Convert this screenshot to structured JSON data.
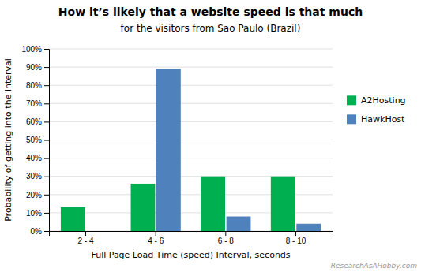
{
  "chart_data": {
    "type": "bar",
    "title": "How it’s likely that a website speed is that much",
    "subtitle": "for the visitors from Sao Paulo (Brazil)",
    "categories": [
      "2 - 4",
      "4 - 6",
      "6 - 8",
      "8 - 10"
    ],
    "series": [
      {
        "name": "A2Hosting",
        "color": "#00b050",
        "values": [
          0.13,
          0.26,
          0.3,
          0.3
        ]
      },
      {
        "name": "HawkHost",
        "color": "#4f81bd",
        "values": [
          0.0,
          0.89,
          0.08,
          0.04
        ]
      }
    ],
    "xlabel": "Full Page Load Time (speed) Interval, seconds",
    "ylabel": "Probability of getting into the interval",
    "ylim": [
      0,
      1.0
    ],
    "yticks": [
      {
        "value": 0.0,
        "label": "0%"
      },
      {
        "value": 0.1,
        "label": "10%"
      },
      {
        "value": 0.2,
        "label": "20%"
      },
      {
        "value": 0.3,
        "label": "30%"
      },
      {
        "value": 0.4,
        "label": "40%"
      },
      {
        "value": 0.5,
        "label": "50%"
      },
      {
        "value": 0.6,
        "label": "60%"
      },
      {
        "value": 0.7,
        "label": "70%"
      },
      {
        "value": 0.8,
        "label": "80%"
      },
      {
        "value": 0.9,
        "label": "90%"
      },
      {
        "value": 1.0,
        "label": "100%"
      }
    ],
    "grid": true,
    "legend": "right",
    "annotations": [
      "ResearchAsAHobby.com"
    ]
  }
}
